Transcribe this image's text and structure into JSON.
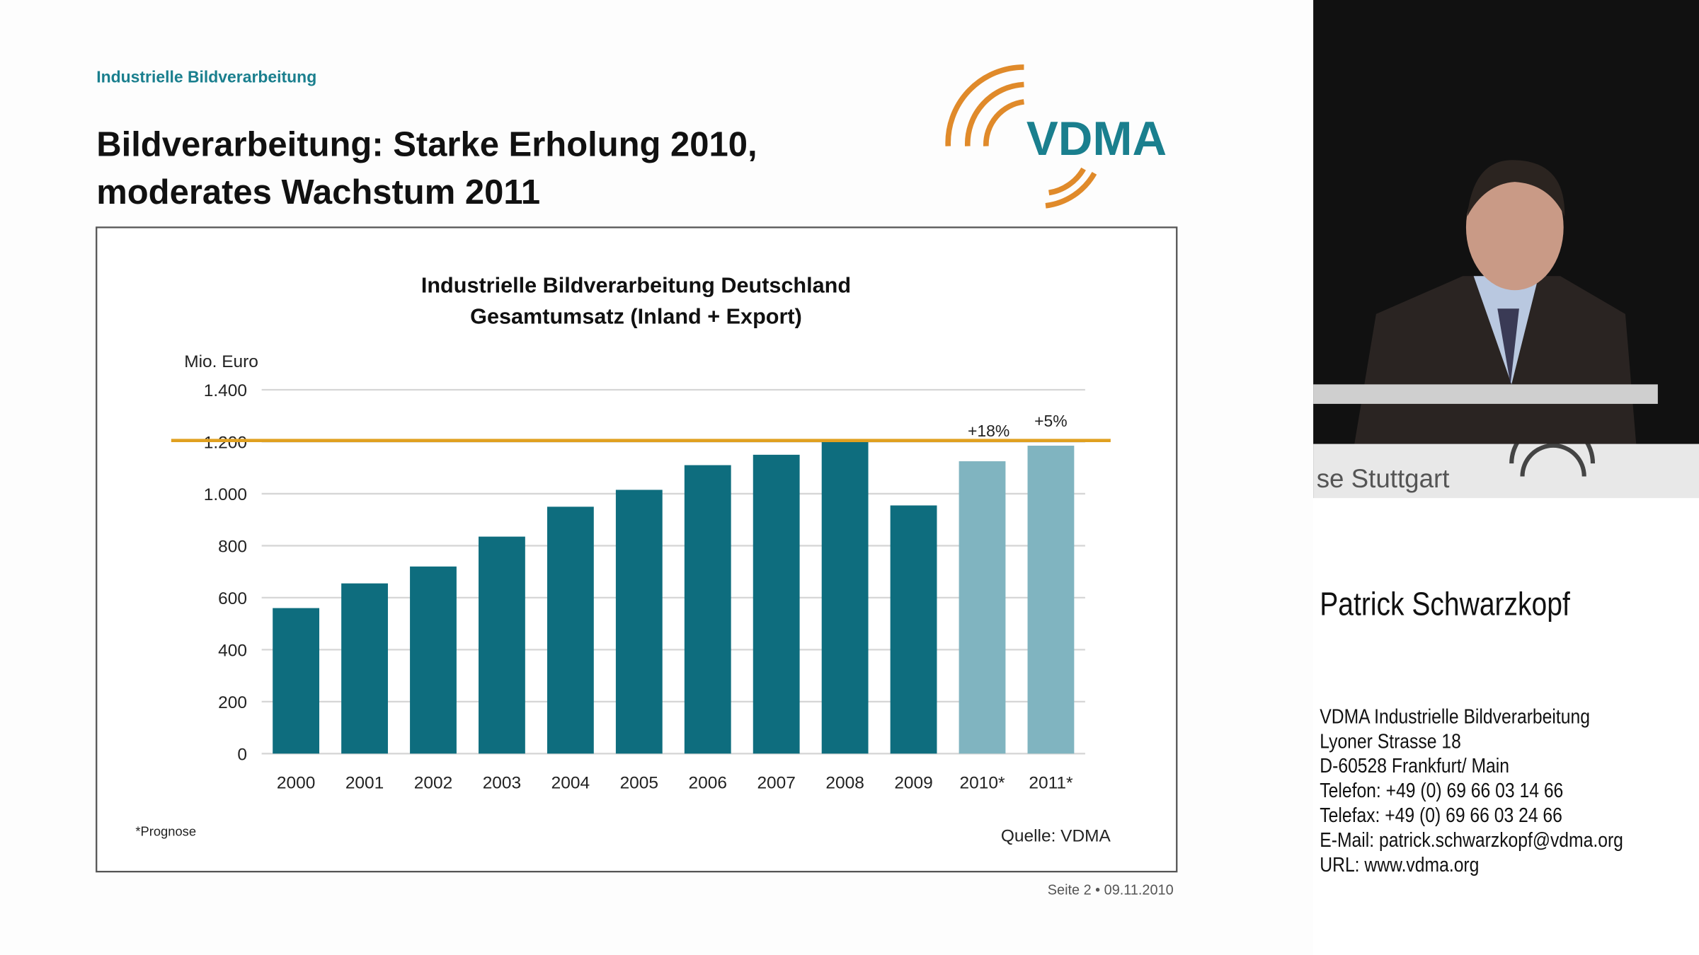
{
  "slide": {
    "header": "Industrielle Bildverarbeitung",
    "title_lines": [
      "Bildverarbeitung: Starke Erholung 2010,",
      "moderates Wachstum 2011"
    ],
    "logo": "VDMA",
    "footer": "Seite 2 • 09.11.2010"
  },
  "chart_data": {
    "type": "bar",
    "title": "Industrielle Bildverarbeitung Deutschland",
    "subtitle": "Gesamtumsatz (Inland + Export)",
    "y_label": "Mio. Euro",
    "categories": [
      "2000",
      "2001",
      "2002",
      "2003",
      "2004",
      "2005",
      "2006",
      "2007",
      "2008",
      "2009",
      "2010*",
      "2011*"
    ],
    "values": [
      560,
      655,
      720,
      835,
      950,
      1015,
      1110,
      1150,
      1205,
      955,
      1125,
      1185
    ],
    "colors": [
      "#0e6d7e",
      "#0e6d7e",
      "#0e6d7e",
      "#0e6d7e",
      "#0e6d7e",
      "#0e6d7e",
      "#0e6d7e",
      "#0e6d7e",
      "#0e6d7e",
      "#0e6d7e",
      "#80b4c0",
      "#80b4c0"
    ],
    "ylim": [
      0,
      1400
    ],
    "yticks": [
      0,
      200,
      400,
      600,
      800,
      {
        "value": 1000,
        "label": "1.000"
      },
      {
        "value": 1200,
        "label": "1.200"
      },
      {
        "value": 1400,
        "label": "1.400"
      }
    ],
    "grid": true,
    "reference_line": 1205,
    "reference_color": "#e0a020",
    "annotations": [
      "+18%",
      "+5%"
    ],
    "footnote": "*Prognose",
    "source": "Quelle: VDMA"
  },
  "video": {
    "backdrop_text": "se Stuttgart"
  },
  "speaker": {
    "name": "Patrick Schwarzkopf",
    "contact": [
      "VDMA Industrielle Bildverarbeitung",
      "Lyoner Strasse 18",
      "D-60528 Frankfurt/ Main",
      "Telefon: +49 (0) 69 66 03 14 66",
      "Telefax: +49 (0) 69 66 03 24 66",
      "E-Mail: patrick.schwarzkopf@vdma.org",
      "URL: www.vdma.org"
    ]
  }
}
